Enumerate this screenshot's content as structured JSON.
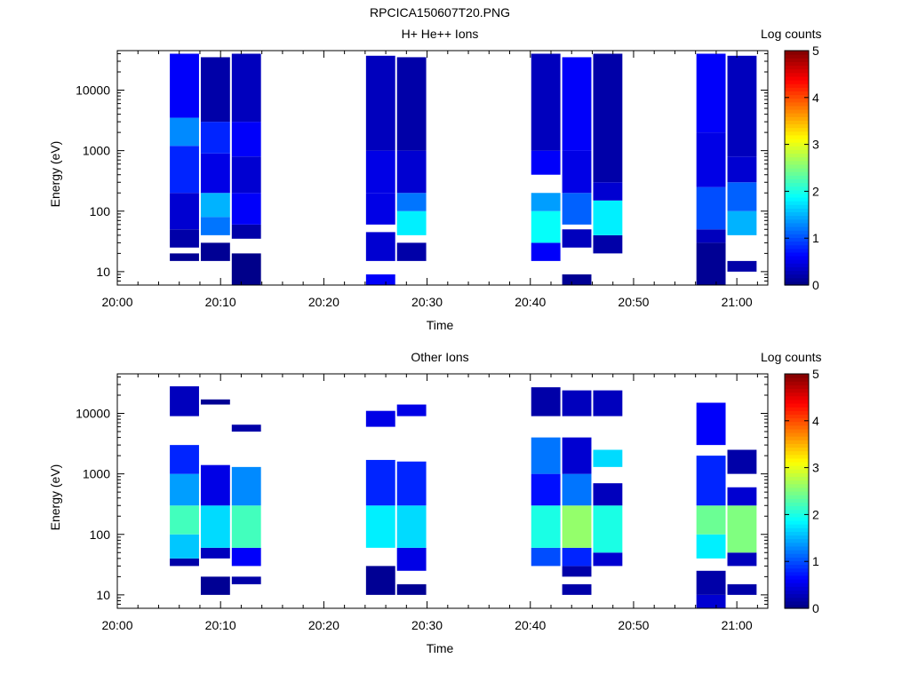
{
  "figure": {
    "title": "RPCICA150607T20.PNG"
  },
  "chart_data": [
    {
      "type": "heatmap",
      "title": "H+ He++ Ions",
      "xlabel": "Time",
      "ylabel": "Energy (eV)",
      "yscale": "log",
      "xlim": [
        "20:00",
        "21:03"
      ],
      "ylim": [
        6,
        45000
      ],
      "xticks": [
        "20:00",
        "20:10",
        "20:20",
        "20:30",
        "20:40",
        "20:50",
        "21:00"
      ],
      "yticks": [
        "10",
        "100",
        "1000",
        "10000"
      ],
      "colorbar": {
        "label": "Log counts",
        "range": [
          0,
          5
        ],
        "ticks": [
          "0",
          "1",
          "2",
          "3",
          "4",
          "5"
        ],
        "colormap": "jet"
      },
      "grid": false,
      "columns": [
        {
          "t_start": "20:05",
          "t_end": "20:08",
          "bands": [
            [
              15,
              20,
              0.1
            ],
            [
              25,
              50,
              0.2
            ],
            [
              50,
              200,
              0.4
            ],
            [
              200,
              1200,
              0.8
            ],
            [
              1200,
              3500,
              1.3
            ],
            [
              3500,
              40000,
              0.6
            ]
          ]
        },
        {
          "t_start": "20:08",
          "t_end": "20:11",
          "bands": [
            [
              15,
              30,
              0.1
            ],
            [
              40,
              80,
              1.2
            ],
            [
              80,
              200,
              1.5
            ],
            [
              200,
              900,
              0.5
            ],
            [
              900,
              3000,
              0.8
            ],
            [
              3000,
              35000,
              0.2
            ]
          ]
        },
        {
          "t_start": "20:11",
          "t_end": "20:14",
          "bands": [
            [
              6,
              20,
              0.05
            ],
            [
              35,
              60,
              0.2
            ],
            [
              60,
              200,
              0.6
            ],
            [
              200,
              800,
              0.4
            ],
            [
              800,
              3000,
              0.6
            ],
            [
              3000,
              40000,
              0.3
            ]
          ]
        },
        {
          "t_start": "20:24",
          "t_end": "20:27",
          "bands": [
            [
              6,
              9,
              0.6
            ],
            [
              15,
              45,
              0.4
            ],
            [
              60,
              200,
              0.5
            ],
            [
              200,
              1000,
              0.5
            ],
            [
              1000,
              37000,
              0.3
            ]
          ]
        },
        {
          "t_start": "20:27",
          "t_end": "20:30",
          "bands": [
            [
              15,
              30,
              0.2
            ],
            [
              40,
              100,
              1.8
            ],
            [
              100,
              200,
              1.2
            ],
            [
              200,
              1000,
              0.4
            ],
            [
              1000,
              35000,
              0.2
            ]
          ]
        },
        {
          "t_start": "20:40",
          "t_end": "20:43",
          "bands": [
            [
              15,
              30,
              0.6
            ],
            [
              30,
              100,
              1.9
            ],
            [
              100,
              200,
              1.4
            ],
            [
              400,
              1000,
              0.6
            ],
            [
              1000,
              40000,
              0.3
            ]
          ]
        },
        {
          "t_start": "20:43",
          "t_end": "20:46",
          "bands": [
            [
              6,
              9,
              0.1
            ],
            [
              25,
              50,
              0.3
            ],
            [
              60,
              200,
              1.1
            ],
            [
              200,
              1000,
              0.5
            ],
            [
              1000,
              35000,
              0.6
            ]
          ]
        },
        {
          "t_start": "20:46",
          "t_end": "20:49",
          "bands": [
            [
              20,
              40,
              0.2
            ],
            [
              40,
              150,
              1.8
            ],
            [
              150,
              300,
              0.4
            ],
            [
              300,
              40000,
              0.2
            ]
          ]
        },
        {
          "t_start": "20:56",
          "t_end": "20:59",
          "bands": [
            [
              6,
              30,
              0.1
            ],
            [
              30,
              50,
              0.3
            ],
            [
              50,
              250,
              1.0
            ],
            [
              250,
              2000,
              0.5
            ],
            [
              2000,
              40000,
              0.6
            ]
          ]
        },
        {
          "t_start": "20:59",
          "t_end": "21:02",
          "bands": [
            [
              10,
              15,
              0.2
            ],
            [
              40,
              100,
              1.5
            ],
            [
              100,
              300,
              1.1
            ],
            [
              300,
              800,
              0.4
            ],
            [
              800,
              37000,
              0.3
            ]
          ]
        }
      ]
    },
    {
      "type": "heatmap",
      "title": "Other Ions",
      "xlabel": "Time",
      "ylabel": "Energy (eV)",
      "yscale": "log",
      "xlim": [
        "20:00",
        "21:03"
      ],
      "ylim": [
        6,
        45000
      ],
      "xticks": [
        "20:00",
        "20:10",
        "20:20",
        "20:30",
        "20:40",
        "20:50",
        "21:00"
      ],
      "yticks": [
        "10",
        "100",
        "1000",
        "10000"
      ],
      "colorbar": {
        "label": "Log counts",
        "range": [
          0,
          5
        ],
        "ticks": [
          "0",
          "1",
          "2",
          "3",
          "4",
          "5"
        ],
        "colormap": "jet"
      },
      "grid": false,
      "columns": [
        {
          "t_start": "20:05",
          "t_end": "20:08",
          "bands": [
            [
              30,
              40,
              0.2
            ],
            [
              40,
              100,
              1.6
            ],
            [
              100,
              300,
              2.2
            ],
            [
              300,
              1000,
              1.4
            ],
            [
              1000,
              3000,
              0.8
            ],
            [
              9000,
              28000,
              0.3
            ]
          ]
        },
        {
          "t_start": "20:08",
          "t_end": "20:11",
          "bands": [
            [
              10,
              20,
              0.1
            ],
            [
              40,
              60,
              0.3
            ],
            [
              60,
              300,
              1.7
            ],
            [
              300,
              1400,
              0.5
            ],
            [
              14000,
              17000,
              0.1
            ]
          ]
        },
        {
          "t_start": "20:11",
          "t_end": "20:14",
          "bands": [
            [
              15,
              20,
              0.2
            ],
            [
              30,
              60,
              0.6
            ],
            [
              60,
              300,
              2.2
            ],
            [
              300,
              1300,
              1.3
            ],
            [
              5000,
              6500,
              0.2
            ]
          ]
        },
        {
          "t_start": "20:24",
          "t_end": "20:27",
          "bands": [
            [
              10,
              30,
              0.1
            ],
            [
              60,
              300,
              1.8
            ],
            [
              300,
              1700,
              0.8
            ],
            [
              6000,
              11000,
              0.5
            ]
          ]
        },
        {
          "t_start": "20:27",
          "t_end": "20:30",
          "bands": [
            [
              10,
              15,
              0.1
            ],
            [
              25,
              60,
              0.5
            ],
            [
              60,
              300,
              1.7
            ],
            [
              300,
              1600,
              0.8
            ],
            [
              9000,
              14000,
              0.5
            ]
          ]
        },
        {
          "t_start": "20:40",
          "t_end": "20:43",
          "bands": [
            [
              30,
              60,
              1.0
            ],
            [
              60,
              300,
              2.0
            ],
            [
              300,
              1000,
              0.7
            ],
            [
              1000,
              4000,
              1.2
            ],
            [
              9000,
              27000,
              0.2
            ]
          ]
        },
        {
          "t_start": "20:43",
          "t_end": "20:46",
          "bands": [
            [
              10,
              15,
              0.2
            ],
            [
              20,
              30,
              0.2
            ],
            [
              30,
              60,
              0.8
            ],
            [
              60,
              300,
              2.6
            ],
            [
              300,
              1000,
              1.2
            ],
            [
              1000,
              4000,
              0.4
            ],
            [
              9000,
              24000,
              0.3
            ]
          ]
        },
        {
          "t_start": "20:46",
          "t_end": "20:49",
          "bands": [
            [
              30,
              50,
              0.4
            ],
            [
              50,
              300,
              2.0
            ],
            [
              300,
              700,
              0.3
            ],
            [
              1300,
              2500,
              1.7
            ],
            [
              9000,
              24000,
              0.3
            ]
          ]
        },
        {
          "t_start": "20:56",
          "t_end": "20:59",
          "bands": [
            [
              6,
              10,
              0.4
            ],
            [
              10,
              25,
              0.2
            ],
            [
              40,
              100,
              1.8
            ],
            [
              100,
              300,
              2.4
            ],
            [
              300,
              2000,
              0.8
            ],
            [
              3000,
              15000,
              0.6
            ]
          ]
        },
        {
          "t_start": "20:59",
          "t_end": "21:02",
          "bands": [
            [
              10,
              15,
              0.2
            ],
            [
              30,
              50,
              0.3
            ],
            [
              50,
              300,
              2.5
            ],
            [
              300,
              600,
              0.4
            ],
            [
              1000,
              2500,
              0.2
            ]
          ]
        }
      ]
    }
  ]
}
